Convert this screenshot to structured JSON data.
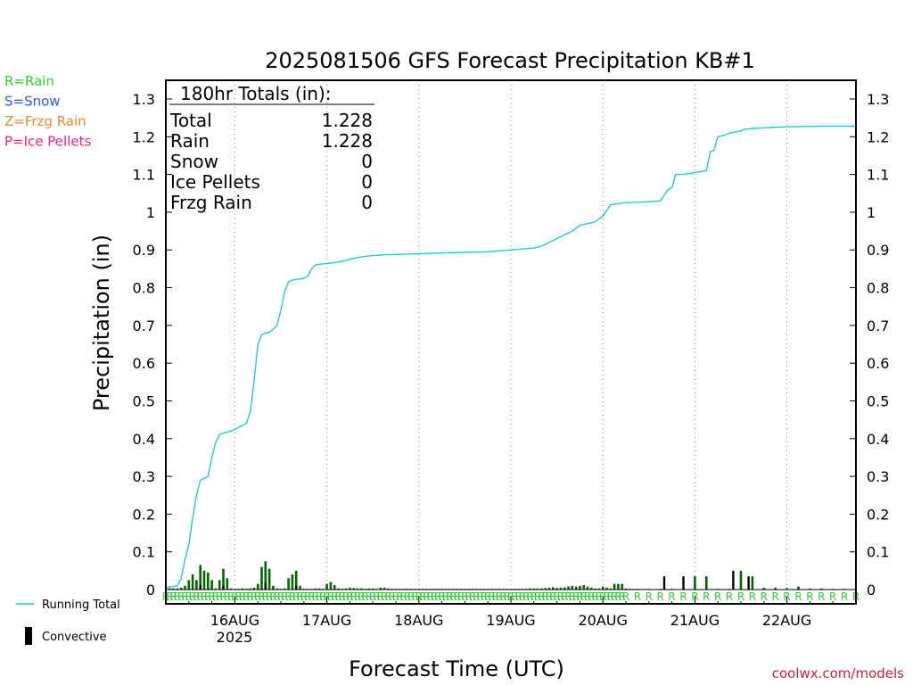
{
  "colors": {
    "rain": "#33cc33",
    "snow": "#3355ee",
    "frzg_rain": "#ee8833",
    "ice_pellets": "#ee2288",
    "running_total": "#22cccc",
    "convective": "#000000",
    "bar": "#006600",
    "credit": "#cc2233"
  },
  "ptype_legend": [
    {
      "label": "R=Rain",
      "color": "#33cc33"
    },
    {
      "label": "S=Snow",
      "color": "#3355ee"
    },
    {
      "label": "Z=Frzg Rain",
      "color": "#ee8833"
    },
    {
      "label": "P=Ice Pellets",
      "color": "#ee2288"
    }
  ],
  "series_legend": {
    "running_total": "Running Total",
    "convective": "Convective"
  },
  "totals_box": {
    "header": "180hr Totals (in):",
    "rows": [
      {
        "label": "Total",
        "value": "1.228"
      },
      {
        "label": "Rain",
        "value": "1.228"
      },
      {
        "label": "Snow",
        "value": "0"
      },
      {
        "label": "Ice Pellets",
        "value": "0"
      },
      {
        "label": "Frzg Rain",
        "value": "0"
      }
    ]
  },
  "credit": "coolwx.com/models",
  "ptype_symbol": "R",
  "chart_data": {
    "type": "line",
    "title": "2025081506 GFS Forecast Precipitation KB#1",
    "xlabel": "Forecast Time (UTC)",
    "ylabel": "Precipitation (in)",
    "xlim": [
      0,
      180
    ],
    "ylim": [
      0,
      1.3
    ],
    "yticks": [
      0,
      0.1,
      0.2,
      0.3,
      0.4,
      0.5,
      0.6,
      0.7,
      0.8,
      0.9,
      1,
      1.1,
      1.2,
      1.3
    ],
    "ytick_labels": [
      "0",
      "0.1",
      "0.2",
      "0.3",
      "0.4",
      "0.5",
      "0.6",
      "0.7",
      "0.8",
      "0.9",
      "1",
      "1.1",
      "1.2",
      "1.3"
    ],
    "xticks": [
      18,
      42,
      66,
      90,
      114,
      138,
      162
    ],
    "xtick_labels": [
      "16AUG",
      "17AUG",
      "18AUG",
      "19AUG",
      "20AUG",
      "21AUG",
      "22AUG"
    ],
    "year_label": "2025",
    "grid": "vertical dotted at day boundaries",
    "running_total": {
      "x": [
        0,
        3,
        4,
        5,
        6,
        7,
        8,
        9,
        10,
        11,
        12,
        13,
        14,
        15,
        16,
        17,
        18,
        19,
        20,
        21,
        22,
        23,
        24,
        25,
        26,
        27,
        28,
        29,
        30,
        31,
        32,
        33,
        34,
        35,
        36,
        37,
        38,
        39,
        40,
        42,
        44,
        46,
        48,
        50,
        52,
        54,
        57,
        60,
        63,
        66,
        72,
        84,
        90,
        96,
        98,
        100,
        102,
        104,
        105,
        106,
        108,
        110,
        111,
        112,
        114,
        116,
        120,
        126,
        129,
        131,
        132,
        133,
        135,
        138,
        141,
        142,
        143,
        144,
        146,
        147,
        150,
        151,
        152,
        153,
        159,
        165,
        171,
        180
      ],
      "y": [
        0.005,
        0.01,
        0.03,
        0.08,
        0.12,
        0.19,
        0.25,
        0.29,
        0.295,
        0.3,
        0.35,
        0.39,
        0.41,
        0.415,
        0.417,
        0.42,
        0.425,
        0.43,
        0.435,
        0.44,
        0.47,
        0.55,
        0.65,
        0.675,
        0.68,
        0.682,
        0.69,
        0.7,
        0.74,
        0.79,
        0.815,
        0.82,
        0.822,
        0.823,
        0.825,
        0.83,
        0.85,
        0.86,
        0.862,
        0.864,
        0.866,
        0.87,
        0.875,
        0.88,
        0.883,
        0.885,
        0.887,
        0.888,
        0.889,
        0.89,
        0.892,
        0.895,
        0.9,
        0.905,
        0.91,
        0.92,
        0.93,
        0.94,
        0.945,
        0.95,
        0.965,
        0.97,
        0.972,
        0.975,
        0.99,
        1.02,
        1.025,
        1.028,
        1.03,
        1.06,
        1.065,
        1.1,
        1.1,
        1.105,
        1.11,
        1.16,
        1.165,
        1.2,
        1.205,
        1.21,
        1.215,
        1.22,
        1.22,
        1.222,
        1.225,
        1.227,
        1.228,
        1.228
      ]
    },
    "precip_bars": {
      "x": [
        1,
        2,
        3,
        4,
        5,
        6,
        7,
        8,
        9,
        10,
        11,
        12,
        13,
        14,
        15,
        16,
        17,
        18,
        19,
        20,
        21,
        22,
        23,
        24,
        25,
        26,
        27,
        28,
        29,
        30,
        31,
        32,
        33,
        34,
        35,
        36,
        37,
        38,
        39,
        40,
        41,
        42,
        43,
        44,
        45,
        46,
        47,
        48,
        49,
        50,
        51,
        52,
        53,
        54,
        55,
        56,
        57,
        58,
        59,
        60,
        61,
        62,
        63,
        64,
        65,
        66,
        67,
        68,
        69,
        70,
        71,
        72,
        73,
        74,
        75,
        76,
        77,
        78,
        79,
        80,
        81,
        82,
        83,
        84,
        85,
        86,
        87,
        88,
        89,
        90,
        91,
        92,
        93,
        94,
        95,
        96,
        97,
        98,
        99,
        100,
        101,
        102,
        103,
        104,
        105,
        106,
        107,
        108,
        109,
        110,
        111,
        112,
        113,
        114,
        115,
        116,
        117,
        118,
        119,
        120,
        121,
        122,
        123,
        126,
        129,
        132,
        135,
        138,
        141,
        144,
        147,
        150,
        153,
        156,
        159,
        162,
        165,
        168,
        171,
        174,
        177,
        180
      ],
      "y": [
        0.003,
        0.003,
        0.003,
        0.005,
        0.01,
        0.025,
        0.04,
        0.025,
        0.065,
        0.05,
        0.045,
        0.025,
        0.003,
        0.025,
        0.055,
        0.03,
        0.003,
        0.002,
        0.002,
        0.003,
        0.002,
        0.003,
        0.005,
        0.015,
        0.06,
        0.075,
        0.055,
        0.01,
        0.003,
        0.002,
        0.003,
        0.03,
        0.04,
        0.05,
        0.01,
        0.002,
        0.002,
        0.002,
        0.003,
        0.003,
        0.002,
        0.015,
        0.02,
        0.012,
        0.003,
        0.002,
        0.003,
        0.005,
        0.004,
        0.003,
        0.003,
        0.002,
        0.003,
        0.003,
        0.002,
        0.005,
        0.005,
        0.003,
        0.002,
        0.002,
        0.002,
        0.002,
        0.002,
        0.002,
        0.002,
        0.002,
        0.002,
        0.002,
        0.002,
        0.002,
        0.002,
        0.002,
        0.002,
        0.002,
        0.002,
        0.002,
        0.002,
        0.002,
        0.002,
        0.002,
        0.002,
        0.002,
        0.002,
        0.002,
        0.002,
        0.002,
        0.002,
        0.002,
        0.002,
        0.002,
        0.002,
        0.002,
        0.002,
        0.002,
        0.003,
        0.003,
        0.003,
        0.003,
        0.004,
        0.005,
        0.006,
        0.004,
        0.005,
        0.006,
        0.008,
        0.01,
        0.008,
        0.01,
        0.012,
        0.008,
        0.005,
        0.003,
        0.003,
        0.008,
        0.005,
        0.003,
        0.015,
        0.015,
        0.015,
        0.003,
        0.002,
        0.002,
        0.002,
        0.002,
        0.002,
        0.002,
        0.002,
        0.035,
        0.035,
        0.002,
        0.002,
        0.05,
        0.035,
        0.005,
        0.005,
        0.004,
        0.008,
        0.003,
        0.003,
        0.002,
        0.002,
        0.002
      ]
    },
    "convective": {
      "x": [
        9,
        15,
        26,
        34,
        130,
        135,
        148,
        152
      ],
      "y": [
        0.012,
        0.01,
        0.018,
        0.01,
        0.035,
        0.035,
        0.05,
        0.035
      ]
    },
    "rain_marks_start": 0,
    "rain_marks_end": 180
  }
}
